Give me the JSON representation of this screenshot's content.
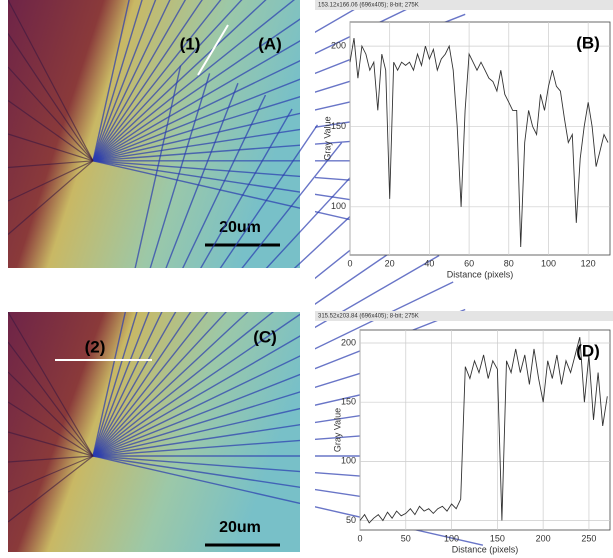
{
  "chart_data": [
    {
      "type": "line",
      "header": "153.12x166.06  (696x405); 8-bit; 275K",
      "panel_label": "(B)",
      "x_label": "Distance (pixels)",
      "y_label": "Gray Value",
      "color": "#333333",
      "grid": true,
      "xlim": [
        0,
        131
      ],
      "ylim": [
        70,
        215
      ],
      "xticks": [
        0,
        20,
        40,
        60,
        80,
        100,
        120
      ],
      "yticks": [
        100,
        150,
        200
      ],
      "x": [
        0,
        2,
        4,
        6,
        8,
        10,
        12,
        14,
        16,
        18,
        20,
        22,
        24,
        26,
        28,
        30,
        32,
        34,
        36,
        38,
        40,
        42,
        44,
        46,
        48,
        50,
        52,
        54,
        56,
        58,
        60,
        62,
        64,
        66,
        68,
        70,
        72,
        74,
        76,
        78,
        80,
        82,
        84,
        86,
        88,
        90,
        92,
        94,
        96,
        98,
        100,
        102,
        104,
        106,
        108,
        110,
        112,
        114,
        116,
        118,
        120,
        122,
        124,
        126,
        128,
        130
      ],
      "values": [
        190,
        205,
        180,
        200,
        195,
        185,
        190,
        160,
        195,
        185,
        105,
        190,
        185,
        190,
        188,
        190,
        185,
        195,
        188,
        200,
        192,
        198,
        185,
        192,
        195,
        200,
        185,
        150,
        100,
        160,
        195,
        190,
        185,
        190,
        185,
        180,
        178,
        172,
        185,
        170,
        165,
        160,
        160,
        75,
        140,
        160,
        150,
        145,
        170,
        160,
        175,
        185,
        175,
        172,
        155,
        140,
        145,
        90,
        130,
        150,
        165,
        150,
        125,
        135,
        145,
        140
      ]
    },
    {
      "type": "line",
      "header": "315.52x203.84  (696x405); 8-bit; 275K",
      "panel_label": "(D)",
      "x_label": "Distance (pixels)",
      "y_label": "Gray Value",
      "color": "#333333",
      "grid": true,
      "xlim": [
        0,
        273
      ],
      "ylim": [
        42,
        211
      ],
      "xticks": [
        0,
        50,
        100,
        150,
        200,
        250
      ],
      "yticks": [
        50,
        100,
        150,
        200
      ],
      "x": [
        0,
        5,
        10,
        15,
        20,
        25,
        30,
        35,
        40,
        45,
        50,
        55,
        60,
        65,
        70,
        75,
        80,
        85,
        90,
        95,
        100,
        105,
        110,
        115,
        120,
        125,
        130,
        135,
        140,
        145,
        150,
        155,
        160,
        165,
        170,
        175,
        180,
        185,
        190,
        195,
        200,
        205,
        210,
        215,
        220,
        225,
        230,
        235,
        240,
        245,
        250,
        255,
        260,
        265,
        270
      ],
      "values": [
        50,
        55,
        48,
        52,
        55,
        50,
        57,
        52,
        58,
        54,
        56,
        60,
        55,
        62,
        58,
        60,
        56,
        60,
        62,
        58,
        64,
        60,
        68,
        180,
        170,
        185,
        175,
        190,
        170,
        185,
        178,
        50,
        185,
        175,
        195,
        175,
        190,
        165,
        195,
        170,
        150,
        185,
        170,
        190,
        165,
        185,
        175,
        190,
        205,
        150,
        190,
        135,
        175,
        130,
        155
      ]
    }
  ],
  "images": [
    {
      "marker": "(1)",
      "label": "(A)",
      "scale": "20um"
    },
    {
      "marker": "(2)",
      "label": "(C)",
      "scale": "20um"
    }
  ]
}
